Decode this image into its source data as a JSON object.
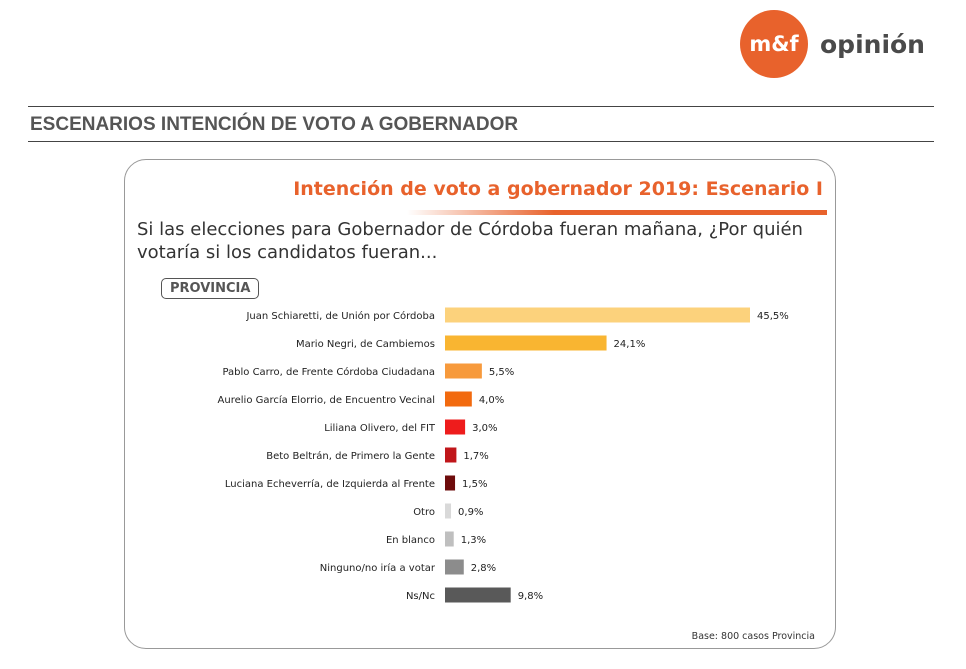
{
  "header": {
    "logo_mark": "m&f",
    "logo_word": "opinión",
    "section_title": "ESCENARIOS INTENCIÓN DE VOTO A GOBERNADOR"
  },
  "card": {
    "badge": "PROVINCIA",
    "base_note": "Base: 800 casos Provincia"
  },
  "colors": {
    "brand_orange": "#e8622c"
  },
  "chart_data": {
    "type": "bar",
    "orientation": "horizontal",
    "title": "Intención de voto a gobernador 2019: Escenario I",
    "subtitle": "Si las elecciones para Gobernador de Córdoba fueran mañana, ¿Por quién votaría si los candidatos fueran...",
    "categories": [
      "Juan Schiaretti, de Unión por Córdoba",
      "Mario Negri, de Cambiemos",
      "Pablo Carro, de Frente Córdoba Ciudadana",
      "Aurelio García Elorrio, de Encuentro Vecinal",
      "Liliana Olivero, del FIT",
      "Beto Beltrán, de Primero la Gente",
      "Luciana Echeverría, de Izquierda al Frente",
      "Otro",
      "En blanco",
      "Ninguno/no iría a votar",
      "Ns/Nc"
    ],
    "values": [
      45.5,
      24.1,
      5.5,
      4.0,
      3.0,
      1.7,
      1.5,
      0.9,
      1.3,
      2.8,
      9.8
    ],
    "value_labels": [
      "45,5%",
      "24,1%",
      "5,5%",
      "4,0%",
      "3,0%",
      "1,7%",
      "1,5%",
      "0,9%",
      "1,3%",
      "2,8%",
      "9,8%"
    ],
    "colors": [
      "#fcd27c",
      "#f9b531",
      "#f79a3c",
      "#f26a0f",
      "#ee1c1c",
      "#c0161a",
      "#6e0c0c",
      "#d9d9d9",
      "#bfbfbf",
      "#8c8c8c",
      "#595959"
    ],
    "xlim": [
      0,
      45.5
    ],
    "grid": false,
    "legend": "none"
  }
}
